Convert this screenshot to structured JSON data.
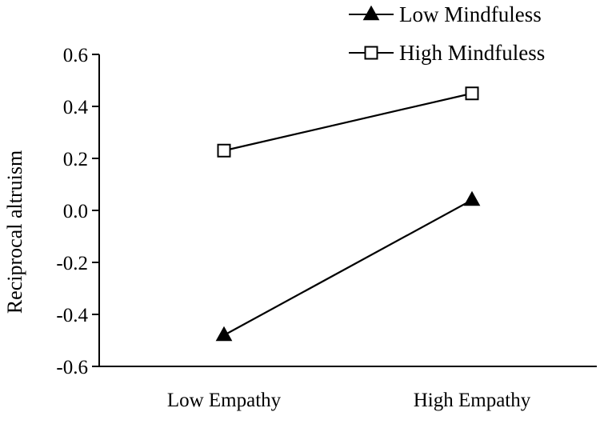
{
  "chart_data": {
    "type": "line",
    "title": "",
    "xlabel": "",
    "ylabel": "Reciprocal altruism",
    "categories": [
      "Low Empathy",
      "High Empathy"
    ],
    "ylim": [
      -0.6,
      0.6
    ],
    "yticks": [
      0.6,
      0.4,
      0.2,
      0.0,
      -0.2,
      -0.4,
      -0.6
    ],
    "ytick_labels": [
      "0.6",
      "0.4",
      "0.2",
      "0.0",
      "-0.2",
      "-0.4",
      "-0.6"
    ],
    "grid": false,
    "legend_position": "top-right",
    "series": [
      {
        "name": "Low Mindfuless",
        "marker": "filled-triangle",
        "color": "#000000",
        "values": [
          -0.48,
          0.04
        ]
      },
      {
        "name": "High Mindfuless",
        "marker": "open-square",
        "color": "#000000",
        "values": [
          0.23,
          0.45
        ]
      }
    ]
  }
}
